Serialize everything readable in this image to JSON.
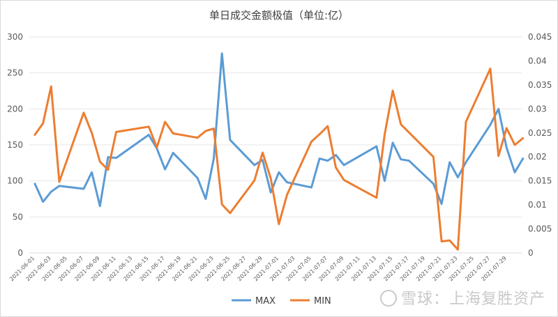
{
  "chart_data": {
    "type": "line",
    "title": "单日成交金额极值（单位:亿）",
    "watermark": "雪球：上海复胜资产",
    "y_left": {
      "range": [
        0,
        300
      ],
      "ticks": [
        "0",
        "50",
        "100",
        "150",
        "200",
        "250",
        "300"
      ]
    },
    "y_right": {
      "range": [
        0,
        0.045
      ],
      "ticks": [
        "0",
        "0.005",
        "0.01",
        "0.015",
        "0.02",
        "0.025",
        "0.03",
        "0.035",
        "0.04",
        "0.045"
      ]
    },
    "x_ticks": [
      "2021-06-01",
      "2021-06-03",
      "2021-06-05",
      "2021-06-07",
      "2021-06-09",
      "2021-06-11",
      "2021-06-13",
      "2021-06-15",
      "2021-06-17",
      "2021-06-19",
      "2021-06-21",
      "2021-06-23",
      "2021-06-25",
      "2021-06-27",
      "2021-06-29",
      "2021-07-01",
      "2021-07-03",
      "2021-07-05",
      "2021-07-07",
      "2021-07-09",
      "2021-07-11",
      "2021-07-13",
      "2021-07-15",
      "2021-07-17",
      "2021-07-19",
      "2021-07-21",
      "2021-07-23",
      "2021-07-25",
      "2021-07-27",
      "2021-07-29"
    ],
    "x_range": [
      0,
      59
    ],
    "legend_position": "bottom",
    "series": [
      {
        "name": "MAX",
        "axis": "left",
        "color": "#5B9BD5",
        "points": [
          [
            0,
            96
          ],
          [
            1,
            71
          ],
          [
            2,
            85
          ],
          [
            3,
            93
          ],
          [
            6,
            89
          ],
          [
            7,
            112
          ],
          [
            8,
            65
          ],
          [
            9,
            133
          ],
          [
            10,
            132
          ],
          [
            14,
            164
          ],
          [
            15,
            145
          ],
          [
            16,
            116
          ],
          [
            17,
            139
          ],
          [
            20,
            104
          ],
          [
            21,
            75
          ],
          [
            22,
            131
          ],
          [
            23,
            277
          ],
          [
            24,
            157
          ],
          [
            27,
            122
          ],
          [
            28,
            129
          ],
          [
            29,
            84
          ],
          [
            30,
            112
          ],
          [
            31,
            98
          ],
          [
            34,
            91
          ],
          [
            35,
            131
          ],
          [
            36,
            128
          ],
          [
            37,
            136
          ],
          [
            38,
            122
          ],
          [
            42,
            148
          ],
          [
            43,
            100
          ],
          [
            44,
            153
          ],
          [
            45,
            130
          ],
          [
            46,
            128
          ],
          [
            49,
            96
          ],
          [
            50,
            68
          ],
          [
            51,
            126
          ],
          [
            52,
            105
          ],
          [
            53,
            126
          ],
          [
            56,
            178
          ],
          [
            57,
            200
          ],
          [
            58,
            146
          ],
          [
            59,
            112
          ],
          [
            60,
            131
          ]
        ]
      },
      {
        "name": "MIN",
        "axis": "right",
        "color": "#ED7D31",
        "points": [
          [
            0,
            0.0246
          ],
          [
            1,
            0.027
          ],
          [
            2,
            0.0347
          ],
          [
            3,
            0.0148
          ],
          [
            6,
            0.0292
          ],
          [
            7,
            0.025
          ],
          [
            8,
            0.019
          ],
          [
            9,
            0.0173
          ],
          [
            10,
            0.0252
          ],
          [
            14,
            0.0263
          ],
          [
            15,
            0.022
          ],
          [
            16,
            0.0273
          ],
          [
            17,
            0.0249
          ],
          [
            20,
            0.024
          ],
          [
            21,
            0.0254
          ],
          [
            22,
            0.0259
          ],
          [
            23,
            0.0101
          ],
          [
            24,
            0.0083
          ],
          [
            27,
            0.0151
          ],
          [
            28,
            0.0209
          ],
          [
            29,
            0.0155
          ],
          [
            30,
            0.006
          ],
          [
            31,
            0.0121
          ],
          [
            34,
            0.0232
          ],
          [
            35,
            0.0247
          ],
          [
            36,
            0.0264
          ],
          [
            37,
            0.0178
          ],
          [
            38,
            0.0152
          ],
          [
            42,
            0.0115
          ],
          [
            43,
            0.0246
          ],
          [
            44,
            0.0338
          ],
          [
            45,
            0.0268
          ],
          [
            49,
            0.02
          ],
          [
            50,
            0.0024
          ],
          [
            51,
            0.0026
          ],
          [
            52,
            0.0007
          ],
          [
            53,
            0.0273
          ],
          [
            56,
            0.0384
          ],
          [
            57,
            0.0202
          ],
          [
            58,
            0.026
          ],
          [
            59,
            0.0225
          ],
          [
            60,
            0.0239
          ]
        ]
      }
    ]
  }
}
